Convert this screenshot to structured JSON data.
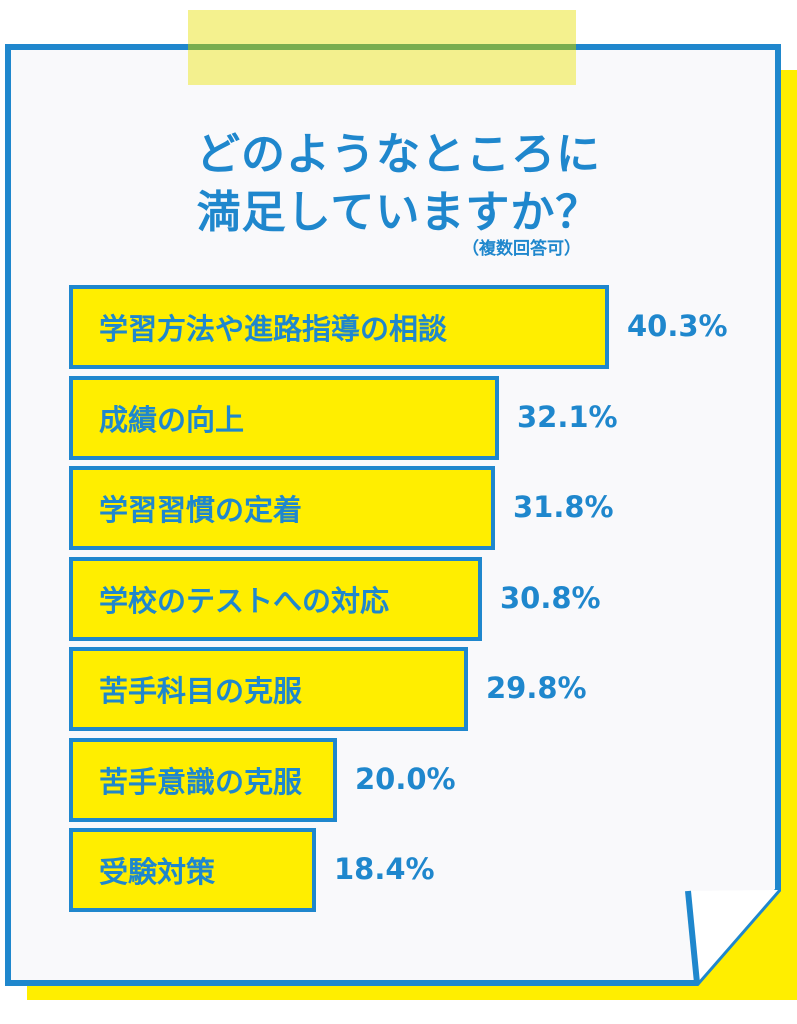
{
  "header": {
    "title_line1": "どのようなところに",
    "title_line2": "満足していますか？",
    "note": "（複数回答可）"
  },
  "colors": {
    "blue": "#1f87cd",
    "yellow": "#ffee00",
    "tape": "#f2ee7a",
    "paper": "#f9f9fb"
  },
  "chart_data": {
    "type": "bar",
    "orientation": "horizontal",
    "title": "どのようなところに満足していますか？",
    "subtitle": "（複数回答可）",
    "categories": [
      "学習方法や進路指導の相談",
      "成績の向上",
      "学習習慣の定着",
      "学校のテストへの対応",
      "苦手科目の克服",
      "苦手意識の克服",
      "受験対策"
    ],
    "values": [
      40.3,
      32.1,
      31.8,
      30.8,
      29.8,
      20.0,
      18.4
    ],
    "value_labels": [
      "40.3%",
      "32.1%",
      "31.8%",
      "30.8%",
      "29.8%",
      "20.0%",
      "18.4%"
    ],
    "unit": "%"
  }
}
